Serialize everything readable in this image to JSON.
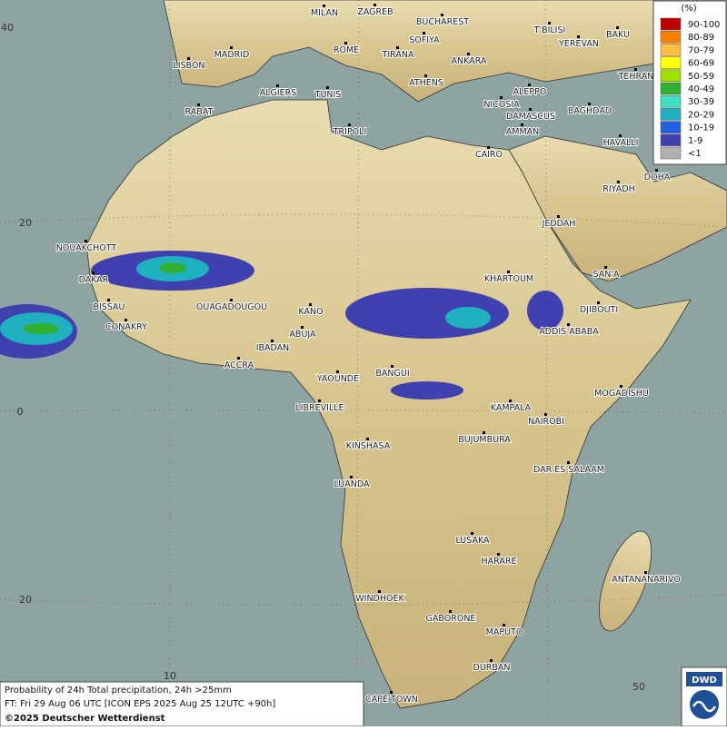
{
  "legend": {
    "title": "(%)",
    "items": [
      {
        "label": "90-100",
        "color": "#c00000"
      },
      {
        "label": "80-89",
        "color": "#ff8000"
      },
      {
        "label": "70-79",
        "color": "#ffc040"
      },
      {
        "label": "60-69",
        "color": "#ffff00"
      },
      {
        "label": "50-59",
        "color": "#a0e000"
      },
      {
        "label": "40-49",
        "color": "#30b030"
      },
      {
        "label": "30-39",
        "color": "#40e0c0"
      },
      {
        "label": "20-29",
        "color": "#20b0c0"
      },
      {
        "label": "10-19",
        "color": "#2060e0"
      },
      {
        "label": "1-9",
        "color": "#4040b0"
      },
      {
        "label": "<1",
        "color": "#b0b0b0"
      }
    ]
  },
  "grid_labels": [
    "40",
    "20",
    "0",
    "20",
    "10",
    "50"
  ],
  "cities": [
    "MILAN",
    "ZAGREB",
    "BUCHAREST",
    "T'BILISI",
    "BAKU",
    "MADRID",
    "ROME",
    "SOFIYA",
    "YEREVAN",
    "LISBON",
    "TIRANA",
    "ANKARA",
    "TEHRAN",
    "ALGIERS",
    "TUNIS",
    "ATHENS",
    "ALEPPO",
    "RABAT",
    "NICOSIA",
    "BAGHDAD",
    "DAMASCUS",
    "TRIPOLI",
    "AMMAN",
    "HAVALLI",
    "CAIRO",
    "DOHA",
    "RIYADH",
    "JEDDAH",
    "NOUAKCHOTT",
    "KHARTOUM",
    "DAKAR",
    "SAN'A",
    "BISSAU",
    "OUAGADOUGOU",
    "KANO",
    "DJIBOUTI",
    "CONAKRY",
    "ABUJA",
    "ADDIS ABABA",
    "IBADAN",
    "ACCRA",
    "YAOUNDE",
    "BANGUI",
    "MOGADISHU",
    "LIBREVILLE",
    "KAMPALA",
    "NAIROBI",
    "BUJUMBURA",
    "KINSHASA",
    "DAR ES SALAAM",
    "LUANDA",
    "LUSAKA",
    "HARARE",
    "ANTANANARIVO",
    "WINDHOEK",
    "GABORONE",
    "MAPUTO",
    "DURBAN",
    "CAPE TOWN"
  ],
  "caption": {
    "line1": "Probability of 24h Total precipitation, 24h >25mm",
    "line2": "FT: Fri 29 Aug 06 UTC [ICON EPS 2025 Aug 25 12UTC +90h]",
    "line3": "©2025 Deutscher Wetterdienst"
  },
  "logo": "DWD"
}
